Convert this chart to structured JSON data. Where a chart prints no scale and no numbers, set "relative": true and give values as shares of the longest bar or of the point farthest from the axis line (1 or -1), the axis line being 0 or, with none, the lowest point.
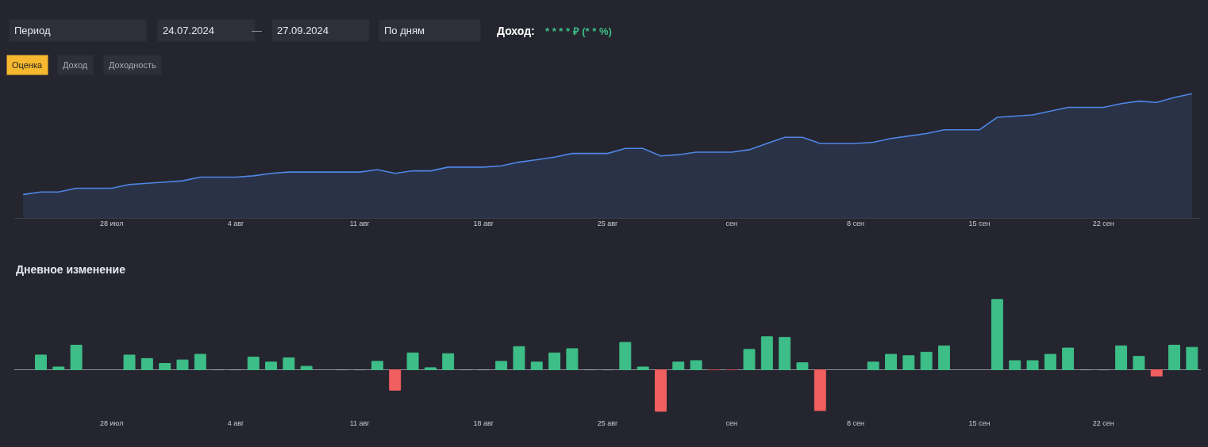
{
  "chart_data": [
    {
      "type": "area",
      "relative": true,
      "x": [
        "2024-07-23",
        "2024-07-24",
        "2024-07-25",
        "2024-07-26",
        "2024-07-27",
        "2024-07-28",
        "2024-07-29",
        "2024-07-30",
        "2024-07-31",
        "2024-08-01",
        "2024-08-02",
        "2024-08-03",
        "2024-08-04",
        "2024-08-05",
        "2024-08-06",
        "2024-08-07",
        "2024-08-08",
        "2024-08-09",
        "2024-08-10",
        "2024-08-11",
        "2024-08-12",
        "2024-08-13",
        "2024-08-14",
        "2024-08-15",
        "2024-08-16",
        "2024-08-17",
        "2024-08-18",
        "2024-08-19",
        "2024-08-20",
        "2024-08-21",
        "2024-08-22",
        "2024-08-23",
        "2024-08-24",
        "2024-08-25",
        "2024-08-26",
        "2024-08-27",
        "2024-08-28",
        "2024-08-29",
        "2024-08-30",
        "2024-08-31",
        "2024-09-01",
        "2024-09-02",
        "2024-09-03",
        "2024-09-04",
        "2024-09-05",
        "2024-09-06",
        "2024-09-07",
        "2024-09-08",
        "2024-09-09",
        "2024-09-10",
        "2024-09-11",
        "2024-09-12",
        "2024-09-13",
        "2024-09-14",
        "2024-09-15",
        "2024-09-16",
        "2024-09-17",
        "2024-09-18",
        "2024-09-19",
        "2024-09-20",
        "2024-09-21",
        "2024-09-22",
        "2024-09-23",
        "2024-09-24",
        "2024-09-25",
        "2024-09-26",
        "2024-09-27"
      ],
      "series": [
        {
          "color": "#4f86e6",
          "values": [
            0.19,
            0.21,
            0.21,
            0.24,
            0.24,
            0.24,
            0.27,
            0.28,
            0.29,
            0.3,
            0.33,
            0.33,
            0.33,
            0.34,
            0.36,
            0.37,
            0.37,
            0.37,
            0.37,
            0.37,
            0.39,
            0.36,
            0.38,
            0.38,
            0.41,
            0.41,
            0.41,
            0.42,
            0.45,
            0.47,
            0.49,
            0.52,
            0.52,
            0.52,
            0.56,
            0.56,
            0.5,
            0.51,
            0.53,
            0.53,
            0.53,
            0.55,
            0.6,
            0.65,
            0.65,
            0.6,
            0.6,
            0.6,
            0.61,
            0.64,
            0.66,
            0.68,
            0.71,
            0.71,
            0.71,
            0.81,
            0.82,
            0.83,
            0.86,
            0.89,
            0.89,
            0.89,
            0.92,
            0.94,
            0.93,
            0.97,
            1
          ]
        }
      ],
      "xlim": [
        "2024-07-22T12:00",
        "2024-09-27T12:00"
      ],
      "xticks": [
        {
          "value": "2024-07-28",
          "label": "28 июл"
        },
        {
          "value": "2024-08-04",
          "label": "4 авг"
        },
        {
          "value": "2024-08-11",
          "label": "11 авг"
        },
        {
          "value": "2024-08-18",
          "label": "18 авг"
        },
        {
          "value": "2024-08-25",
          "label": "25 авг"
        },
        {
          "value": "2024-09-01",
          "label": "сен"
        },
        {
          "value": "2024-09-08",
          "label": "8 сен"
        },
        {
          "value": "2024-09-15",
          "label": "15 сен"
        },
        {
          "value": "2024-09-22",
          "label": "22 сен"
        }
      ],
      "annotations": [
        "Период",
        "24.07.2024",
        "—",
        "27.09.2024",
        "По дням",
        "Доход:",
        "* * * * ₽ (* * %)",
        "Оценка",
        "Доход",
        "Доходность"
      ]
    },
    {
      "type": "bar",
      "relative": true,
      "title": "Дневное изменение",
      "x": [
        "2024-07-24",
        "2024-07-25",
        "2024-07-26",
        "2024-07-27",
        "2024-07-28",
        "2024-07-29",
        "2024-07-30",
        "2024-07-31",
        "2024-08-01",
        "2024-08-02",
        "2024-08-03",
        "2024-08-04",
        "2024-08-05",
        "2024-08-06",
        "2024-08-07",
        "2024-08-08",
        "2024-08-09",
        "2024-08-10",
        "2024-08-11",
        "2024-08-12",
        "2024-08-13",
        "2024-08-14",
        "2024-08-15",
        "2024-08-16",
        "2024-08-17",
        "2024-08-18",
        "2024-08-19",
        "2024-08-20",
        "2024-08-21",
        "2024-08-22",
        "2024-08-23",
        "2024-08-24",
        "2024-08-25",
        "2024-08-26",
        "2024-08-27",
        "2024-08-28",
        "2024-08-29",
        "2024-08-30",
        "2024-08-31",
        "2024-09-01",
        "2024-09-02",
        "2024-09-03",
        "2024-09-04",
        "2024-09-05",
        "2024-09-06",
        "2024-09-07",
        "2024-09-08",
        "2024-09-09",
        "2024-09-10",
        "2024-09-11",
        "2024-09-12",
        "2024-09-13",
        "2024-09-14",
        "2024-09-15",
        "2024-09-16",
        "2024-09-17",
        "2024-09-18",
        "2024-09-19",
        "2024-09-20",
        "2024-09-21",
        "2024-09-22",
        "2024-09-23",
        "2024-09-24",
        "2024-09-25",
        "2024-09-26",
        "2024-09-27"
      ],
      "values": [
        0.21,
        0.04,
        0.35,
        null,
        null,
        0.21,
        0.16,
        0.09,
        0.14,
        0.22,
        0,
        0,
        0.18,
        0.11,
        0.17,
        0.05,
        null,
        0,
        0,
        0.12,
        -0.29,
        0.24,
        0.03,
        0.23,
        0,
        0,
        0.12,
        0.33,
        0.11,
        0.24,
        0.3,
        0,
        0,
        0.39,
        0.04,
        -0.59,
        0.11,
        0.13,
        0,
        0,
        0.29,
        0.47,
        0.46,
        0.1,
        -0.58,
        null,
        null,
        0.11,
        0.22,
        0.2,
        0.25,
        0.34,
        null,
        null,
        1,
        0.13,
        0.13,
        0.22,
        0.31,
        0,
        0,
        0.34,
        0.19,
        -0.09,
        0.35,
        0.32
      ],
      "colors": [
        "#3dbd88",
        "#3dbd88",
        "#3dbd88",
        null,
        null,
        "#3dbd88",
        "#3dbd88",
        "#3dbd88",
        "#3dbd88",
        "#3dbd88",
        "#9a9ba3",
        "#9a9ba3",
        "#3dbd88",
        "#3dbd88",
        "#3dbd88",
        "#3dbd88",
        null,
        "#9a9ba3",
        "#9a9ba3",
        "#3dbd88",
        "#f25f5f",
        "#3dbd88",
        "#3dbd88",
        "#3dbd88",
        "#9a9ba3",
        "#9a9ba3",
        "#3dbd88",
        "#3dbd88",
        "#3dbd88",
        "#3dbd88",
        "#3dbd88",
        "#9a9ba3",
        "#9a9ba3",
        "#3dbd88",
        "#3dbd88",
        "#f25f5f",
        "#3dbd88",
        "#3dbd88",
        "#b2474b",
        "#b2474b",
        "#3dbd88",
        "#3dbd88",
        "#3dbd88",
        "#3dbd88",
        "#f25f5f",
        null,
        null,
        "#3dbd88",
        "#3dbd88",
        "#3dbd88",
        "#3dbd88",
        "#3dbd88",
        null,
        null,
        "#3dbd88",
        "#3dbd88",
        "#3dbd88",
        "#3dbd88",
        "#3dbd88",
        "#9a9ba3",
        "#9a9ba3",
        "#3dbd88",
        "#3dbd88",
        "#f25f5f",
        "#3dbd88",
        "#3dbd88"
      ],
      "xlim": [
        "2024-07-22T12:00",
        "2024-09-27T12:00"
      ],
      "xticks": [
        {
          "value": "2024-07-28",
          "label": "28 июл"
        },
        {
          "value": "2024-08-04",
          "label": "4 авг"
        },
        {
          "value": "2024-08-11",
          "label": "11 авг"
        },
        {
          "value": "2024-08-18",
          "label": "18 авг"
        },
        {
          "value": "2024-08-25",
          "label": "25 авг"
        },
        {
          "value": "2024-09-01",
          "label": "сен"
        },
        {
          "value": "2024-09-08",
          "label": "8 сен"
        },
        {
          "value": "2024-09-15",
          "label": "15 сен"
        },
        {
          "value": "2024-09-22",
          "label": "22 сен"
        }
      ]
    }
  ]
}
